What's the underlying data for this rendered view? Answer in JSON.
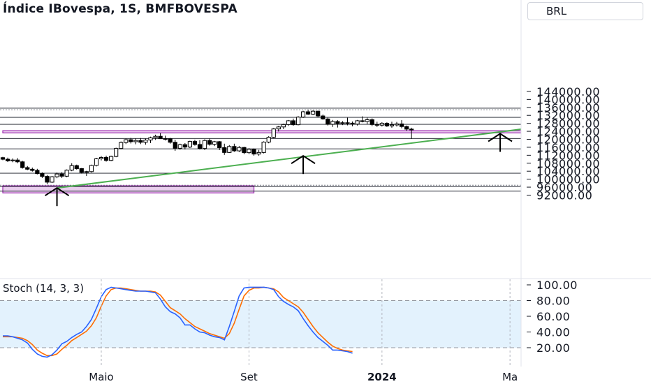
{
  "header": {
    "title": "Índice IBovespa, 1S, BMFBOVESPA",
    "currency_button": "BRL"
  },
  "indicator": {
    "label": "Stoch (14, 3, 3)"
  },
  "colors": {
    "up_body": "#ffffff",
    "down_body": "#000000",
    "wick": "#000000",
    "trendline": "#4caf50",
    "zone": "#e1bee7",
    "zone_border": "#9c27b0",
    "stoch_k": "#2962ff",
    "stoch_d": "#ff6d00",
    "stoch_band": "#e3f2fd"
  },
  "chart_data": [
    {
      "type": "candlestick",
      "title": "Índice IBovespa, 1S, BMFBOVESPA",
      "ylim": [
        90000,
        146000
      ],
      "y_ticks": [
        "144000.00",
        "140000.00",
        "136000.00",
        "132000.00",
        "128000.00",
        "124000.00",
        "120000.00",
        "116000.00",
        "112000.00",
        "108000.00",
        "104000.00",
        "100000.00",
        "96000.00",
        "92000.00"
      ],
      "x_ticks": [
        {
          "label": "Maio",
          "bar": 20
        },
        {
          "label": "Set",
          "bar": 50
        },
        {
          "label": "2024",
          "bar": 77
        },
        {
          "label": "Ma",
          "bar": 103
        }
      ],
      "horizontal_levels": [
        135600,
        131000,
        127500,
        120400,
        115200,
        103000,
        96300,
        94000
      ],
      "dotted_levels": [
        134800,
        97000
      ],
      "zones": [
        {
          "from": 123200,
          "to": 124300,
          "start_bar": 0,
          "end_bar": 107
        },
        {
          "from": 93100,
          "to": 96700,
          "start_bar": 0,
          "end_bar": 51
        }
      ],
      "trendline": {
        "start": {
          "bar": 11,
          "value": 95600
        },
        "end": {
          "bar": 107,
          "value": 125600
        }
      },
      "arrows": [
        {
          "bar": 11,
          "value": 95600
        },
        {
          "bar": 61,
          "value": 111700
        },
        {
          "bar": 101,
          "value": 122800
        }
      ],
      "candles": [
        [
          110800,
          111200,
          109500,
          110000
        ],
        [
          110000,
          110800,
          108600,
          109200
        ],
        [
          109200,
          110400,
          108500,
          109600
        ],
        [
          109600,
          110600,
          108000,
          108700
        ],
        [
          108700,
          109200,
          105300,
          105800
        ],
        [
          105800,
          106600,
          104500,
          105000
        ],
        [
          105000,
          105800,
          103800,
          104400
        ],
        [
          104400,
          105200,
          102400,
          102800
        ],
        [
          102800,
          103400,
          100600,
          101400
        ],
        [
          101400,
          102100,
          97400,
          98500
        ],
        [
          98500,
          101600,
          98100,
          101200
        ],
        [
          101200,
          103300,
          100500,
          102600
        ],
        [
          102600,
          103500,
          100600,
          101500
        ],
        [
          101500,
          104900,
          101000,
          104500
        ],
        [
          104500,
          108000,
          104000,
          106800
        ],
        [
          106800,
          107300,
          104800,
          105300
        ],
        [
          105300,
          105600,
          102800,
          103400
        ],
        [
          103400,
          104200,
          101600,
          103800
        ],
        [
          103800,
          107300,
          103300,
          106900
        ],
        [
          106900,
          110700,
          106400,
          110200
        ],
        [
          110200,
          111600,
          109400,
          110900
        ],
        [
          110900,
          111800,
          108800,
          109400
        ],
        [
          109400,
          111800,
          109000,
          111400
        ],
        [
          111400,
          115800,
          111000,
          115400
        ],
        [
          115400,
          118900,
          115000,
          118400
        ],
        [
          118400,
          120400,
          117600,
          119800
        ],
        [
          119800,
          120700,
          117900,
          118800
        ],
        [
          118800,
          120400,
          117500,
          119400
        ],
        [
          119400,
          120600,
          117600,
          118500
        ],
        [
          118500,
          120300,
          117300,
          119600
        ],
        [
          119600,
          121300,
          118100,
          120800
        ],
        [
          120800,
          122300,
          119700,
          121500
        ],
        [
          121500,
          123100,
          120200,
          120300
        ],
        [
          120300,
          121800,
          119400,
          120200
        ],
        [
          120200,
          120700,
          117800,
          118500
        ],
        [
          118500,
          119800,
          114200,
          115500
        ],
        [
          115500,
          117800,
          114800,
          117300
        ],
        [
          117300,
          118100,
          114900,
          116100
        ],
        [
          116100,
          119300,
          115600,
          118900
        ],
        [
          118900,
          119800,
          116800,
          117400
        ],
        [
          117400,
          119600,
          114900,
          115400
        ],
        [
          115400,
          120000,
          114600,
          119400
        ],
        [
          119400,
          120300,
          116800,
          117500
        ],
        [
          117500,
          119200,
          116600,
          118800
        ],
        [
          118800,
          119100,
          114600,
          115800
        ],
        [
          115800,
          117800,
          112200,
          113400
        ],
        [
          113400,
          117100,
          113200,
          116400
        ],
        [
          116400,
          117800,
          113700,
          114200
        ],
        [
          114200,
          116600,
          113600,
          115900
        ],
        [
          115900,
          116200,
          112500,
          113300
        ],
        [
          113300,
          115600,
          112500,
          115000
        ],
        [
          115000,
          115400,
          111800,
          112600
        ],
        [
          112600,
          114700,
          111700,
          113400
        ],
        [
          113400,
          119000,
          112900,
          118600
        ],
        [
          118600,
          121600,
          118000,
          121000
        ],
        [
          121000,
          125600,
          120600,
          125200
        ],
        [
          125200,
          126700,
          123900,
          126200
        ],
        [
          126200,
          127800,
          125100,
          127400
        ],
        [
          127400,
          129700,
          126700,
          129300
        ],
        [
          129300,
          130400,
          126800,
          127300
        ],
        [
          127300,
          131600,
          127000,
          131100
        ],
        [
          131100,
          134300,
          130700,
          133800
        ],
        [
          133800,
          134700,
          132200,
          132600
        ],
        [
          132600,
          134500,
          132200,
          134100
        ],
        [
          134100,
          134300,
          131000,
          131700
        ],
        [
          131700,
          132400,
          129800,
          130200
        ],
        [
          130200,
          130800,
          126900,
          127500
        ],
        [
          127500,
          129700,
          126200,
          128900
        ],
        [
          128900,
          129600,
          125900,
          127900
        ],
        [
          127900,
          129100,
          127100,
          128300
        ],
        [
          128300,
          130800,
          127000,
          128100
        ],
        [
          128100,
          128900,
          126500,
          127600
        ],
        [
          127600,
          129700,
          126900,
          129300
        ],
        [
          129300,
          131500,
          128500,
          128900
        ],
        [
          128900,
          130800,
          127600,
          129800
        ],
        [
          129800,
          130500,
          126600,
          127400
        ],
        [
          127400,
          128800,
          126200,
          127100
        ],
        [
          127100,
          128600,
          126400,
          128000
        ],
        [
          128000,
          128500,
          126200,
          126700
        ],
        [
          126700,
          128800,
          125800,
          127200
        ],
        [
          127200,
          128700,
          126400,
          127700
        ],
        [
          127700,
          129600,
          125500,
          126400
        ],
        [
          126400,
          126900,
          124200,
          125100
        ],
        [
          125100,
          125800,
          120200,
          124900
        ]
      ]
    },
    {
      "type": "line",
      "title": "Stoch (14, 3, 3)",
      "ylim": [
        0,
        100
      ],
      "y_ticks": [
        "100.00",
        "80.00",
        "60.00",
        "40.00",
        "20.00"
      ],
      "bands": [
        20,
        80
      ],
      "series": [
        {
          "name": "%K",
          "values": [
            35,
            35,
            34,
            32,
            30,
            26,
            18,
            12,
            9,
            8,
            11,
            17,
            25,
            28,
            33,
            37,
            40,
            47,
            56,
            70,
            85,
            94,
            97,
            96,
            95,
            94,
            93,
            92,
            92,
            92,
            91,
            90,
            82,
            72,
            66,
            63,
            58,
            49,
            49,
            44,
            40,
            39,
            36,
            34,
            33,
            30,
            47,
            66,
            86,
            96,
            97,
            97,
            97,
            97,
            96,
            94,
            85,
            79,
            75,
            72,
            67,
            57,
            48,
            40,
            33,
            28,
            23,
            17,
            17,
            16,
            15,
            13
          ]
        },
        {
          "name": "%D",
          "values": [
            34,
            34,
            34,
            33,
            32,
            29,
            24,
            17,
            13,
            10,
            10,
            12,
            18,
            23,
            29,
            33,
            37,
            41,
            48,
            58,
            73,
            86,
            94,
            96,
            96,
            95,
            94,
            93,
            92,
            92,
            92,
            91,
            87,
            79,
            71,
            67,
            63,
            57,
            52,
            47,
            44,
            41,
            38,
            36,
            34,
            32,
            38,
            51,
            69,
            86,
            93,
            96,
            96,
            97,
            96,
            95,
            91,
            84,
            80,
            76,
            72,
            65,
            56,
            47,
            39,
            33,
            27,
            22,
            19,
            17,
            16,
            15
          ]
        }
      ]
    }
  ]
}
